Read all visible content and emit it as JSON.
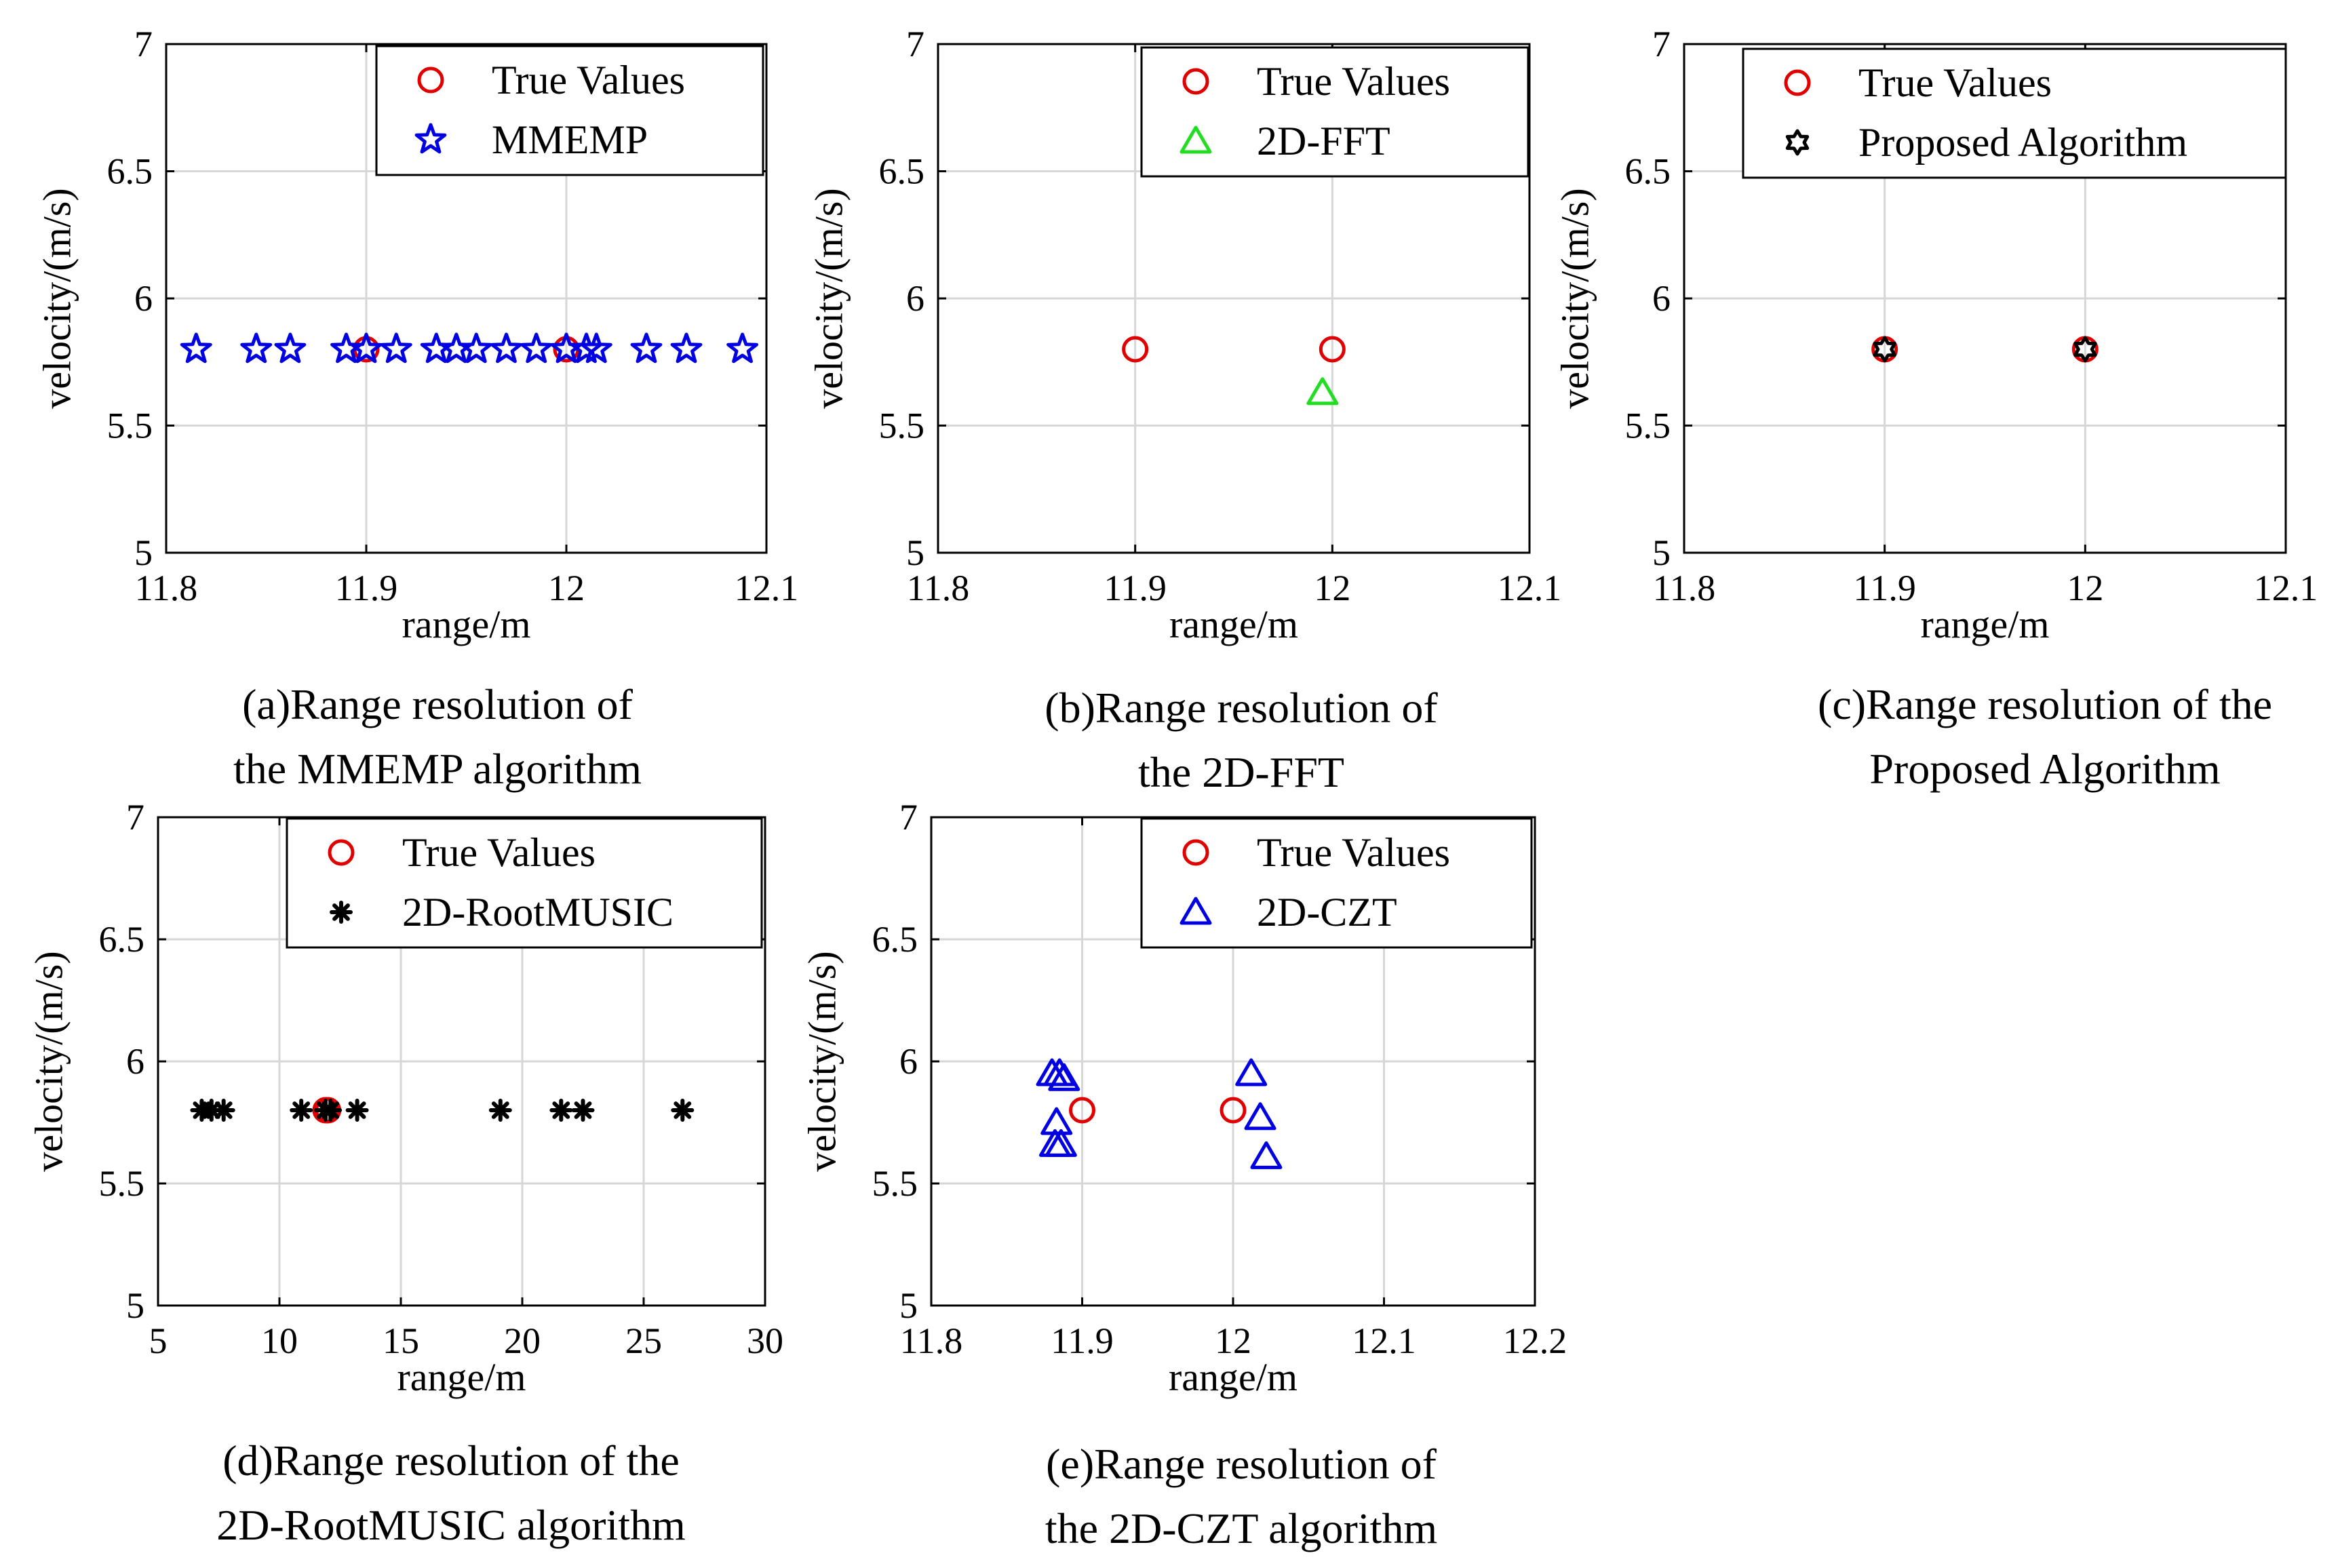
{
  "colors": {
    "true_values": "#e00000",
    "mmemp": "#0000e0",
    "fft": "#22dd22",
    "proposed": "#000000",
    "rootmusic": "#000000",
    "czt": "#0000e0",
    "grid": "#d6d6d6",
    "axis": "#000000"
  },
  "chart_data": [
    {
      "id": "a",
      "type": "scatter",
      "xlabel": "range/m",
      "ylabel": "velocity/(m/s)",
      "xlim": [
        11.8,
        12.1
      ],
      "ylim": [
        5,
        7
      ],
      "xticks": [
        "11.8",
        "11.9",
        "12",
        "12.1"
      ],
      "yticks": [
        "5",
        "5.5",
        "6",
        "6.5",
        "7"
      ],
      "grid": true,
      "legend_position": "top-right",
      "caption": [
        "(a)Range resolution of",
        "the MMEMP algorithm"
      ],
      "series": [
        {
          "name": "True Values",
          "marker": "circle",
          "color_key": "true_values",
          "x": [
            11.9,
            12.0
          ],
          "y": [
            5.8,
            5.8
          ]
        },
        {
          "name": "MMEMP",
          "marker": "star",
          "color_key": "mmemp",
          "x": [
            11.815,
            11.845,
            11.862,
            11.89,
            11.9,
            11.915,
            11.935,
            11.945,
            11.955,
            11.97,
            11.985,
            12.0,
            12.01,
            12.015,
            12.04,
            12.06,
            12.088
          ],
          "y": [
            5.8,
            5.8,
            5.8,
            5.8,
            5.8,
            5.8,
            5.8,
            5.8,
            5.8,
            5.8,
            5.8,
            5.8,
            5.8,
            5.8,
            5.8,
            5.8,
            5.8
          ]
        }
      ]
    },
    {
      "id": "b",
      "type": "scatter",
      "xlabel": "range/m",
      "ylabel": "velocity/(m/s)",
      "xlim": [
        11.8,
        12.1
      ],
      "ylim": [
        5,
        7
      ],
      "xticks": [
        "11.8",
        "11.9",
        "12",
        "12.1"
      ],
      "yticks": [
        "5",
        "5.5",
        "6",
        "6.5",
        "7"
      ],
      "grid": true,
      "legend_position": "top-right",
      "caption": [
        "(b)Range resolution of",
        "the 2D-FFT"
      ],
      "series": [
        {
          "name": "True Values",
          "marker": "circle",
          "color_key": "true_values",
          "x": [
            11.9,
            12.0
          ],
          "y": [
            5.8,
            5.8
          ]
        },
        {
          "name": "2D-FFT",
          "marker": "triangle",
          "color_key": "fft",
          "x": [
            11.995
          ],
          "y": [
            5.63
          ]
        }
      ]
    },
    {
      "id": "c",
      "type": "scatter",
      "xlabel": "range/m",
      "ylabel": "velocity/(m/s)",
      "xlim": [
        11.8,
        12.1
      ],
      "ylim": [
        5,
        7
      ],
      "xticks": [
        "11.8",
        "11.9",
        "12",
        "12.1"
      ],
      "yticks": [
        "5",
        "5.5",
        "6",
        "6.5",
        "7"
      ],
      "grid": true,
      "legend_position": "top-right",
      "caption": [
        "(c)Range resolution of the",
        "Proposed Algorithm"
      ],
      "series": [
        {
          "name": "True Values",
          "marker": "circle",
          "color_key": "true_values",
          "x": [
            11.9,
            12.0
          ],
          "y": [
            5.8,
            5.8
          ]
        },
        {
          "name": "Proposed Algorithm",
          "marker": "hexagram",
          "color_key": "proposed",
          "x": [
            11.9,
            12.0
          ],
          "y": [
            5.8,
            5.8
          ]
        }
      ]
    },
    {
      "id": "d",
      "type": "scatter",
      "xlabel": "range/m",
      "ylabel": "velocity/(m/s)",
      "xlim": [
        5,
        30
      ],
      "ylim": [
        5,
        7
      ],
      "xticks": [
        "5",
        "10",
        "15",
        "20",
        "25",
        "30"
      ],
      "yticks": [
        "5",
        "5.5",
        "6",
        "6.5",
        "7"
      ],
      "grid": true,
      "legend_position": "top-right",
      "caption": [
        "(d)Range resolution of the",
        "2D-RootMUSIC algorithm"
      ],
      "series": [
        {
          "name": "True Values",
          "marker": "circle",
          "color_key": "true_values",
          "x": [
            11.9,
            12.0
          ],
          "y": [
            5.8,
            5.8
          ]
        },
        {
          "name": "2D-RootMUSIC",
          "marker": "asterisk",
          "color_key": "rootmusic",
          "x": [
            6.8,
            7.2,
            7.7,
            10.9,
            11.9,
            12.1,
            13.2,
            19.1,
            21.6,
            22.5,
            26.6
          ],
          "y": [
            5.8,
            5.8,
            5.8,
            5.8,
            5.8,
            5.8,
            5.8,
            5.8,
            5.8,
            5.8,
            5.8
          ]
        }
      ]
    },
    {
      "id": "e",
      "type": "scatter",
      "xlabel": "range/m",
      "ylabel": "velocity/(m/s)",
      "xlim": [
        11.8,
        12.2
      ],
      "ylim": [
        5,
        7
      ],
      "xticks": [
        "11.8",
        "11.9",
        "12",
        "12.1",
        "12.2"
      ],
      "yticks": [
        "5",
        "5.5",
        "6",
        "6.5",
        "7"
      ],
      "grid": true,
      "legend_position": "top-right",
      "caption": [
        "(e)Range resolution of",
        "the 2D-CZT algorithm"
      ],
      "series": [
        {
          "name": "True Values",
          "marker": "circle",
          "color_key": "true_values",
          "x": [
            11.9,
            12.0
          ],
          "y": [
            5.8,
            5.8
          ]
        },
        {
          "name": "2D-CZT",
          "marker": "triangle",
          "color_key": "czt",
          "x": [
            11.88,
            11.885,
            11.888,
            11.883,
            11.882,
            11.886,
            12.012,
            12.018,
            12.022
          ],
          "y": [
            5.95,
            5.95,
            5.93,
            5.75,
            5.66,
            5.66,
            5.95,
            5.77,
            5.61
          ]
        }
      ]
    }
  ]
}
